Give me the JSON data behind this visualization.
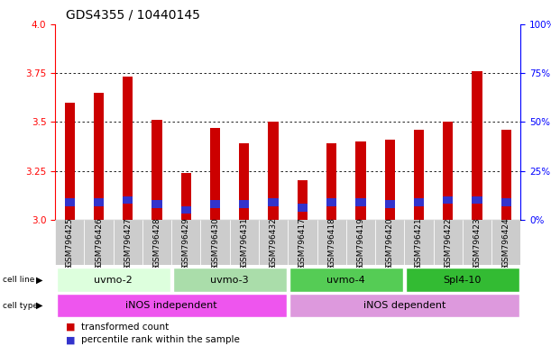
{
  "title": "GDS4355 / 10440145",
  "samples": [
    "GSM796425",
    "GSM796426",
    "GSM796427",
    "GSM796428",
    "GSM796429",
    "GSM796430",
    "GSM796431",
    "GSM796432",
    "GSM796417",
    "GSM796418",
    "GSM796419",
    "GSM796420",
    "GSM796421",
    "GSM796422",
    "GSM796423",
    "GSM796424"
  ],
  "transformed_count": [
    3.6,
    3.65,
    3.73,
    3.51,
    3.24,
    3.47,
    3.39,
    3.5,
    3.2,
    3.39,
    3.4,
    3.41,
    3.46,
    3.5,
    3.76,
    3.46
  ],
  "percentile_base": [
    3.07,
    3.07,
    3.08,
    3.06,
    3.03,
    3.06,
    3.06,
    3.07,
    3.04,
    3.07,
    3.07,
    3.06,
    3.07,
    3.08,
    3.08,
    3.07
  ],
  "percentile_height": [
    0.04,
    0.04,
    0.04,
    0.04,
    0.04,
    0.04,
    0.04,
    0.04,
    0.04,
    0.04,
    0.04,
    0.04,
    0.04,
    0.04,
    0.04,
    0.04
  ],
  "ylim": [
    3.0,
    4.0
  ],
  "yticks_left": [
    3.0,
    3.25,
    3.5,
    3.75,
    4.0
  ],
  "yticks_right_vals": [
    0,
    25,
    50,
    75,
    100
  ],
  "yticks_right_labels": [
    "0%",
    "25%",
    "50%",
    "75%",
    "100%"
  ],
  "bar_color": "#cc0000",
  "blue_color": "#3333cc",
  "bar_bottom": 3.0,
  "bar_width": 0.35,
  "cell_line_groups": [
    {
      "label": "uvmo-2",
      "start": 0,
      "end": 3,
      "color": "#ddffdd"
    },
    {
      "label": "uvmo-3",
      "start": 4,
      "end": 7,
      "color": "#aaddaa"
    },
    {
      "label": "uvmo-4",
      "start": 8,
      "end": 11,
      "color": "#55cc55"
    },
    {
      "label": "Spl4-10",
      "start": 12,
      "end": 15,
      "color": "#33bb33"
    }
  ],
  "cell_type_groups": [
    {
      "label": "iNOS independent",
      "start": 0,
      "end": 7,
      "color": "#ee55ee"
    },
    {
      "label": "iNOS dependent",
      "start": 8,
      "end": 15,
      "color": "#dd99dd"
    }
  ],
  "legend_items": [
    {
      "label": "transformed count",
      "color": "#cc0000"
    },
    {
      "label": "percentile rank within the sample",
      "color": "#3333cc"
    }
  ],
  "title_fontsize": 10,
  "tick_fontsize": 6.5,
  "label_fontsize": 8,
  "annotation_fontsize": 7
}
